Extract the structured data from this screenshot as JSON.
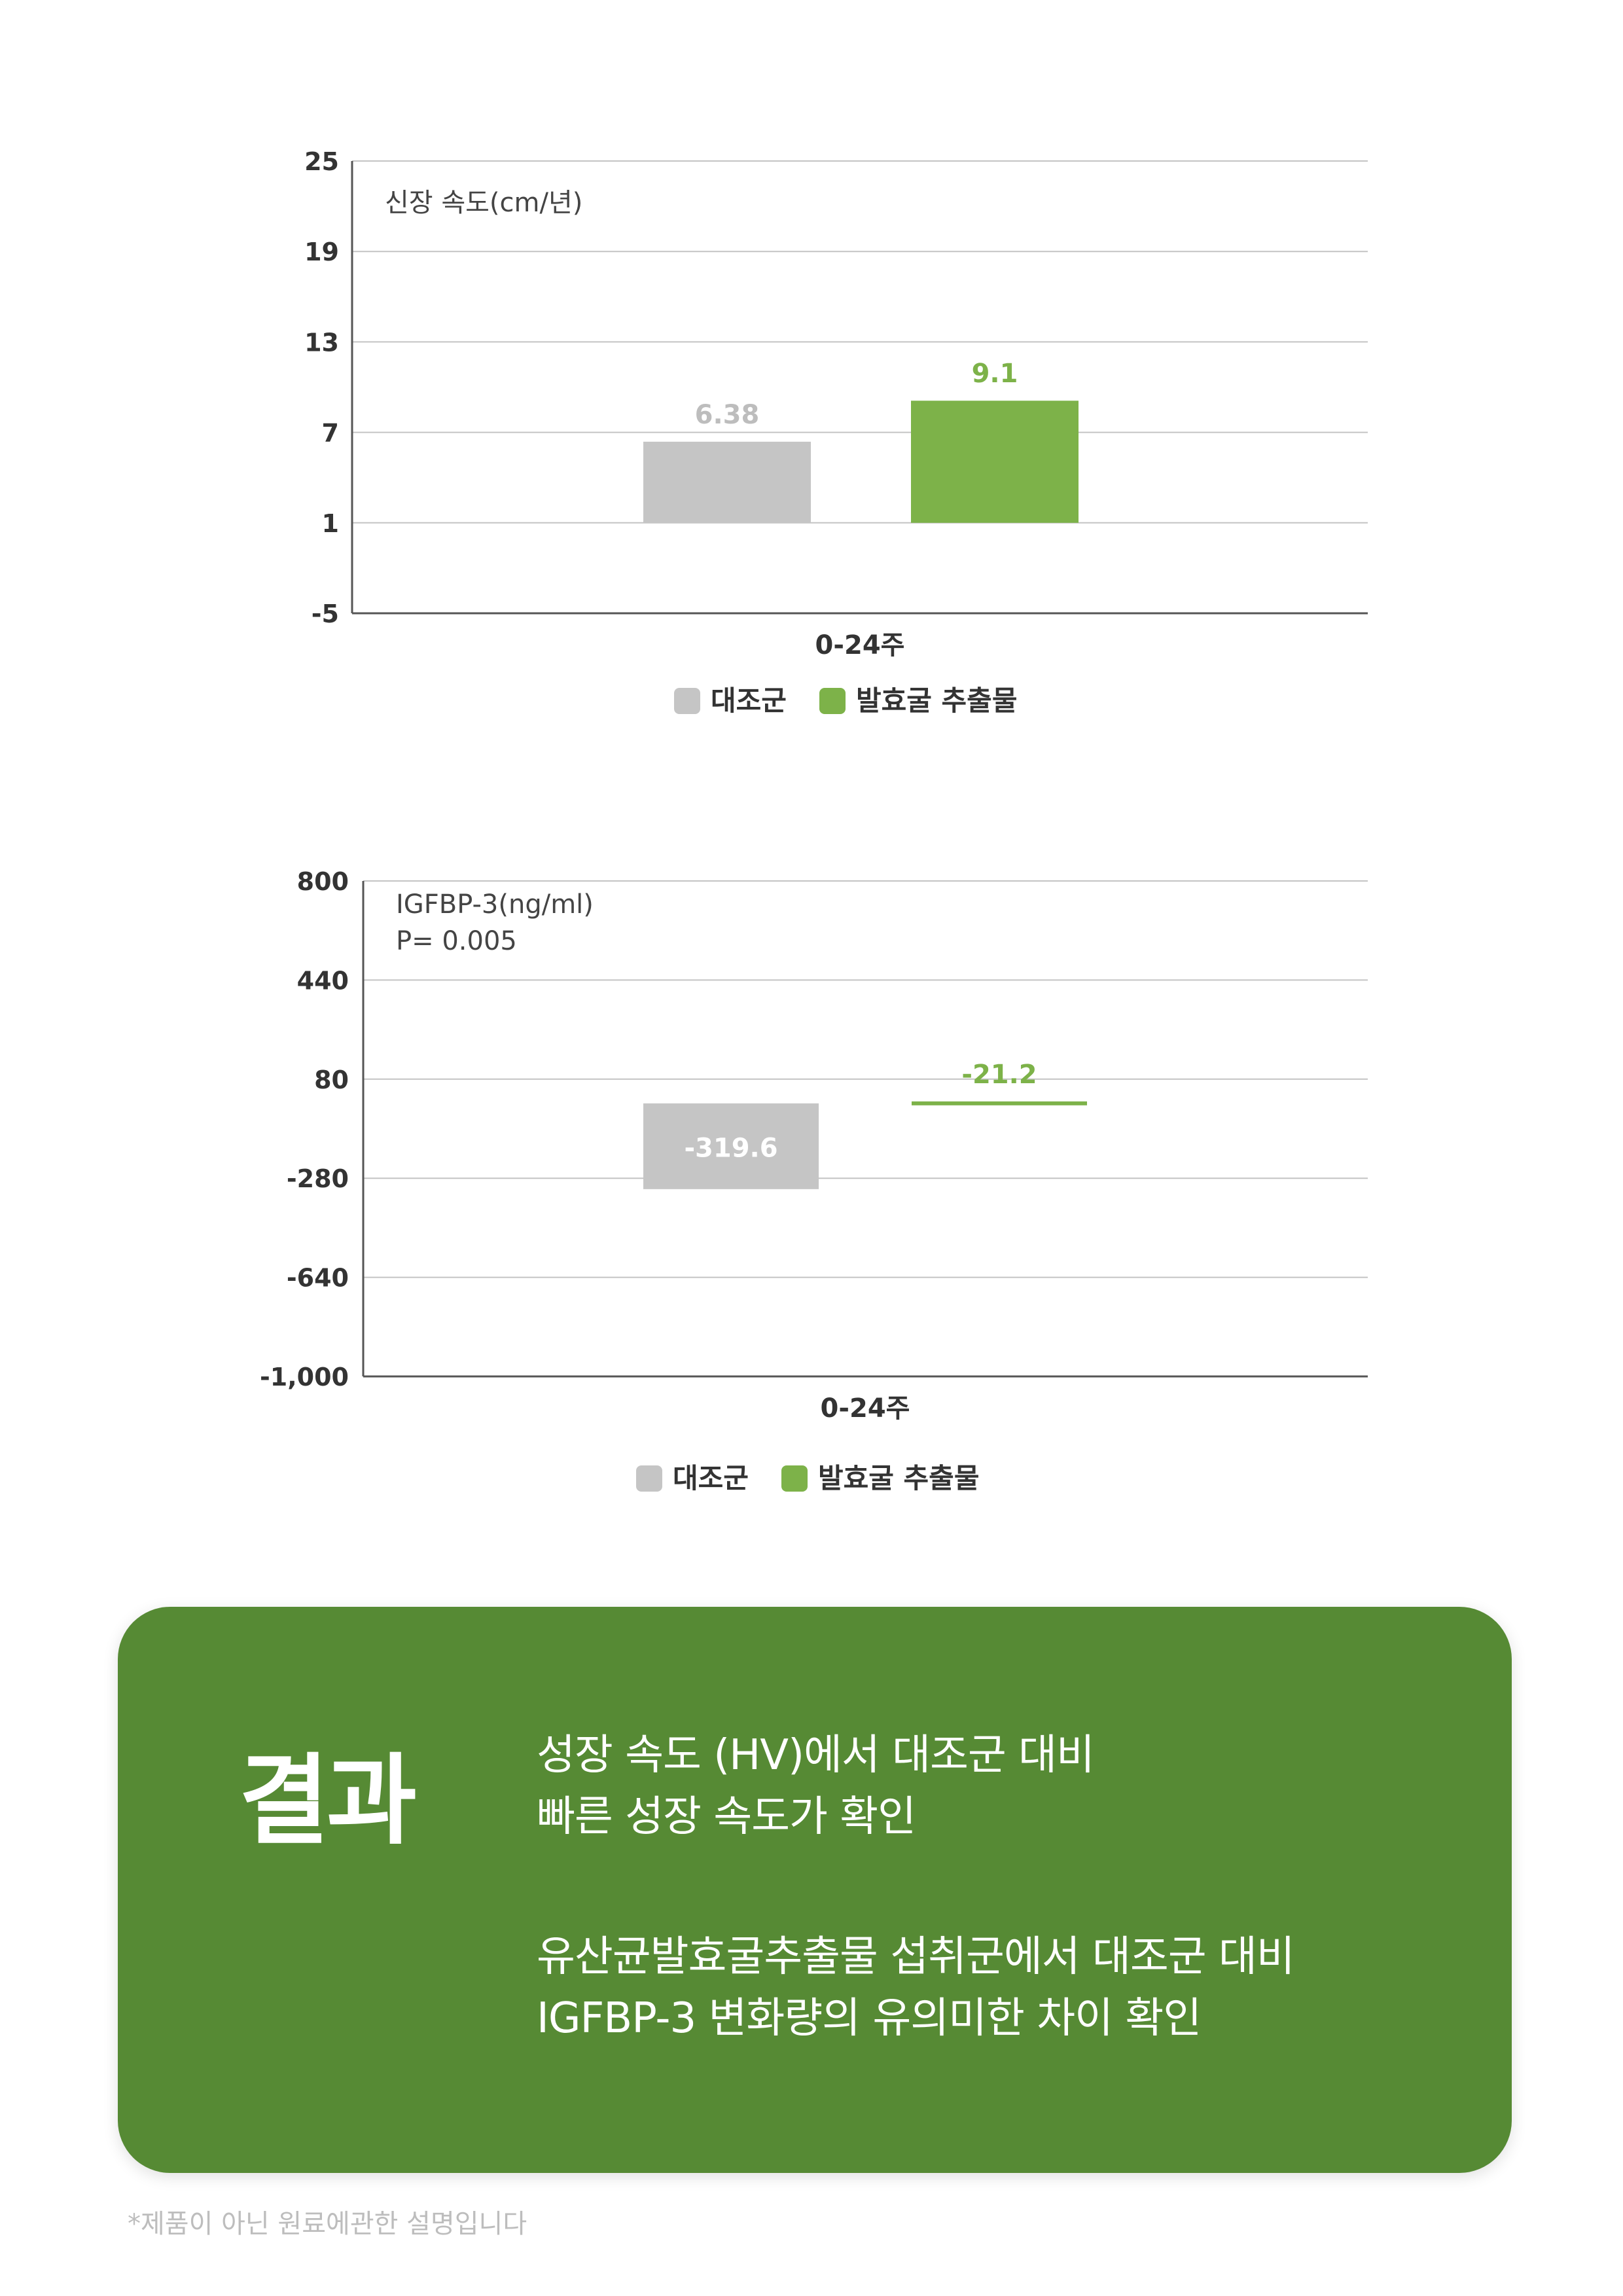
{
  "chart_data": [
    {
      "type": "bar",
      "annotations": [
        "신장 속도(cm/년)"
      ],
      "categories": [
        "0-24주"
      ],
      "y_ticks": [
        "25",
        "19",
        "13",
        "7",
        "1",
        "-5"
      ],
      "ylim": [
        -5,
        25
      ],
      "baseline": 1,
      "grid": true,
      "legend_position": "bottom-center",
      "series": [
        {
          "name": "대조군",
          "values": [
            6.38
          ],
          "value_label": "6.38",
          "color": "#c5c5c5",
          "label_color": "#bdbdbd"
        },
        {
          "name": "발효굴 추출물",
          "values": [
            9.1
          ],
          "value_label": "9.1",
          "color": "#7db249",
          "label_color": "#7db249"
        }
      ]
    },
    {
      "type": "bar",
      "annotations": [
        "IGFBP-3(ng/ml)",
        "P= 0.005"
      ],
      "categories": [
        "0-24주"
      ],
      "y_ticks": [
        "800",
        "440",
        "80",
        "-280",
        "-640",
        "-1,000"
      ],
      "ylim": [
        -1000,
        800
      ],
      "baseline": -8,
      "grid": true,
      "legend_position": "bottom-center",
      "series": [
        {
          "name": "대조군",
          "values": [
            -319.6
          ],
          "value_label": "-319.6",
          "color": "#c5c5c5",
          "label_color": "#ffffff"
        },
        {
          "name": "발효굴 추출물",
          "values": [
            -21.2
          ],
          "value_label": "-21.2",
          "color": "#7db249",
          "label_color": "#7db249"
        }
      ]
    }
  ],
  "result": {
    "title": "결과",
    "lines": [
      "성장 속도 (HV)에서 대조군 대비",
      "빠른 성장 속도가 확인",
      "유산균발효굴추출물 섭취군에서 대조군 대비",
      "IGFBP-3 변화량의 유의미한 차이 확인"
    ]
  },
  "footnote": "*제품이 아닌 원료에관한 설명입니다"
}
